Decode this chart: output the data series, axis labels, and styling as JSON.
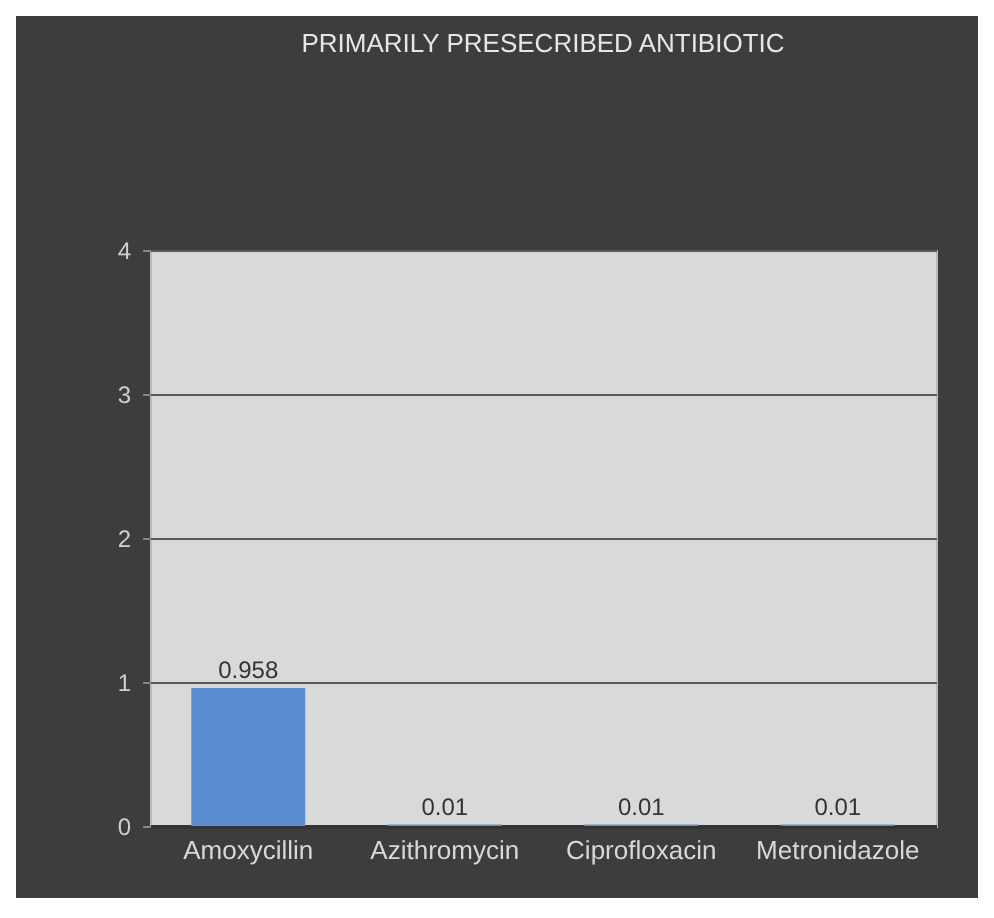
{
  "chart_data": {
    "type": "bar",
    "title": "PRIMARILY PRESECRIBED ANTIBIOTIC",
    "categories": [
      "Amoxycillin",
      "Azithromycin",
      "Ciprofloxacin",
      "Metronidazole"
    ],
    "values": [
      0.958,
      0.01,
      0.01,
      0.01
    ],
    "color": "#5b8bd0",
    "ylim": [
      0,
      4
    ],
    "yticks": [
      0,
      1,
      2,
      3,
      4
    ],
    "grid": "y",
    "data_labels": true
  }
}
